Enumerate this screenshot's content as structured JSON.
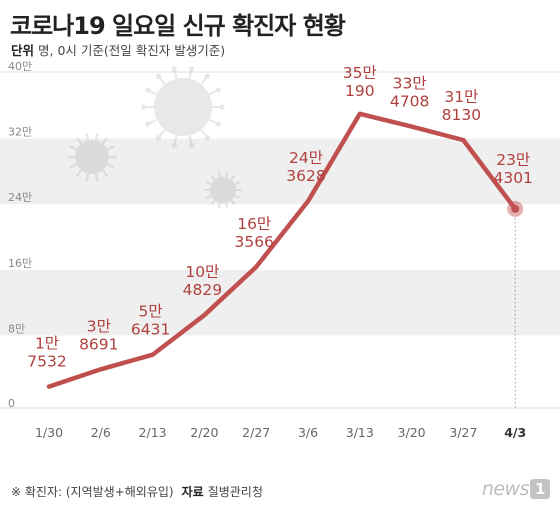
{
  "header": {
    "title": "코로나19 일요일 신규 확진자 현황",
    "unit_label": "단위",
    "unit_text": "명, 0시 기준(전일 확진자 발생기준)"
  },
  "footer": {
    "note": "※ 확진자: (지역발생+해외유입)",
    "source_label": "자료",
    "source": "질병관리청",
    "logo_text": "news",
    "logo_badge": "1"
  },
  "colors": {
    "line": "#c0504f",
    "label": "#b0413e",
    "band": "#efefef",
    "axis_text": "#888888",
    "last_tick": "#333333"
  },
  "chart_data": {
    "type": "line",
    "categories": [
      "1/30",
      "2/6",
      "2/13",
      "2/20",
      "2/27",
      "3/6",
      "3/13",
      "3/20",
      "3/27",
      "4/3"
    ],
    "values": [
      17532,
      38691,
      56431,
      104829,
      163566,
      243628,
      350190,
      334708,
      318130,
      234301
    ],
    "data_labels": [
      [
        "1만",
        "7532"
      ],
      [
        "3만",
        "8691"
      ],
      [
        "5만",
        "6431"
      ],
      [
        "10만",
        "4829"
      ],
      [
        "16만",
        "3566"
      ],
      [
        "24만",
        "3628"
      ],
      [
        "35만",
        "190"
      ],
      [
        "33만",
        "4708"
      ],
      [
        "31만",
        "8130"
      ],
      [
        "23만",
        "4301"
      ]
    ],
    "y_ticks": [
      0,
      80000,
      160000,
      240000,
      320000,
      400000
    ],
    "y_tick_labels": [
      "0",
      "8만",
      "16만",
      "24만",
      "32만",
      "40만"
    ],
    "ylim": [
      0,
      400000
    ],
    "grid": "alternating bands",
    "highlight_last": true
  }
}
